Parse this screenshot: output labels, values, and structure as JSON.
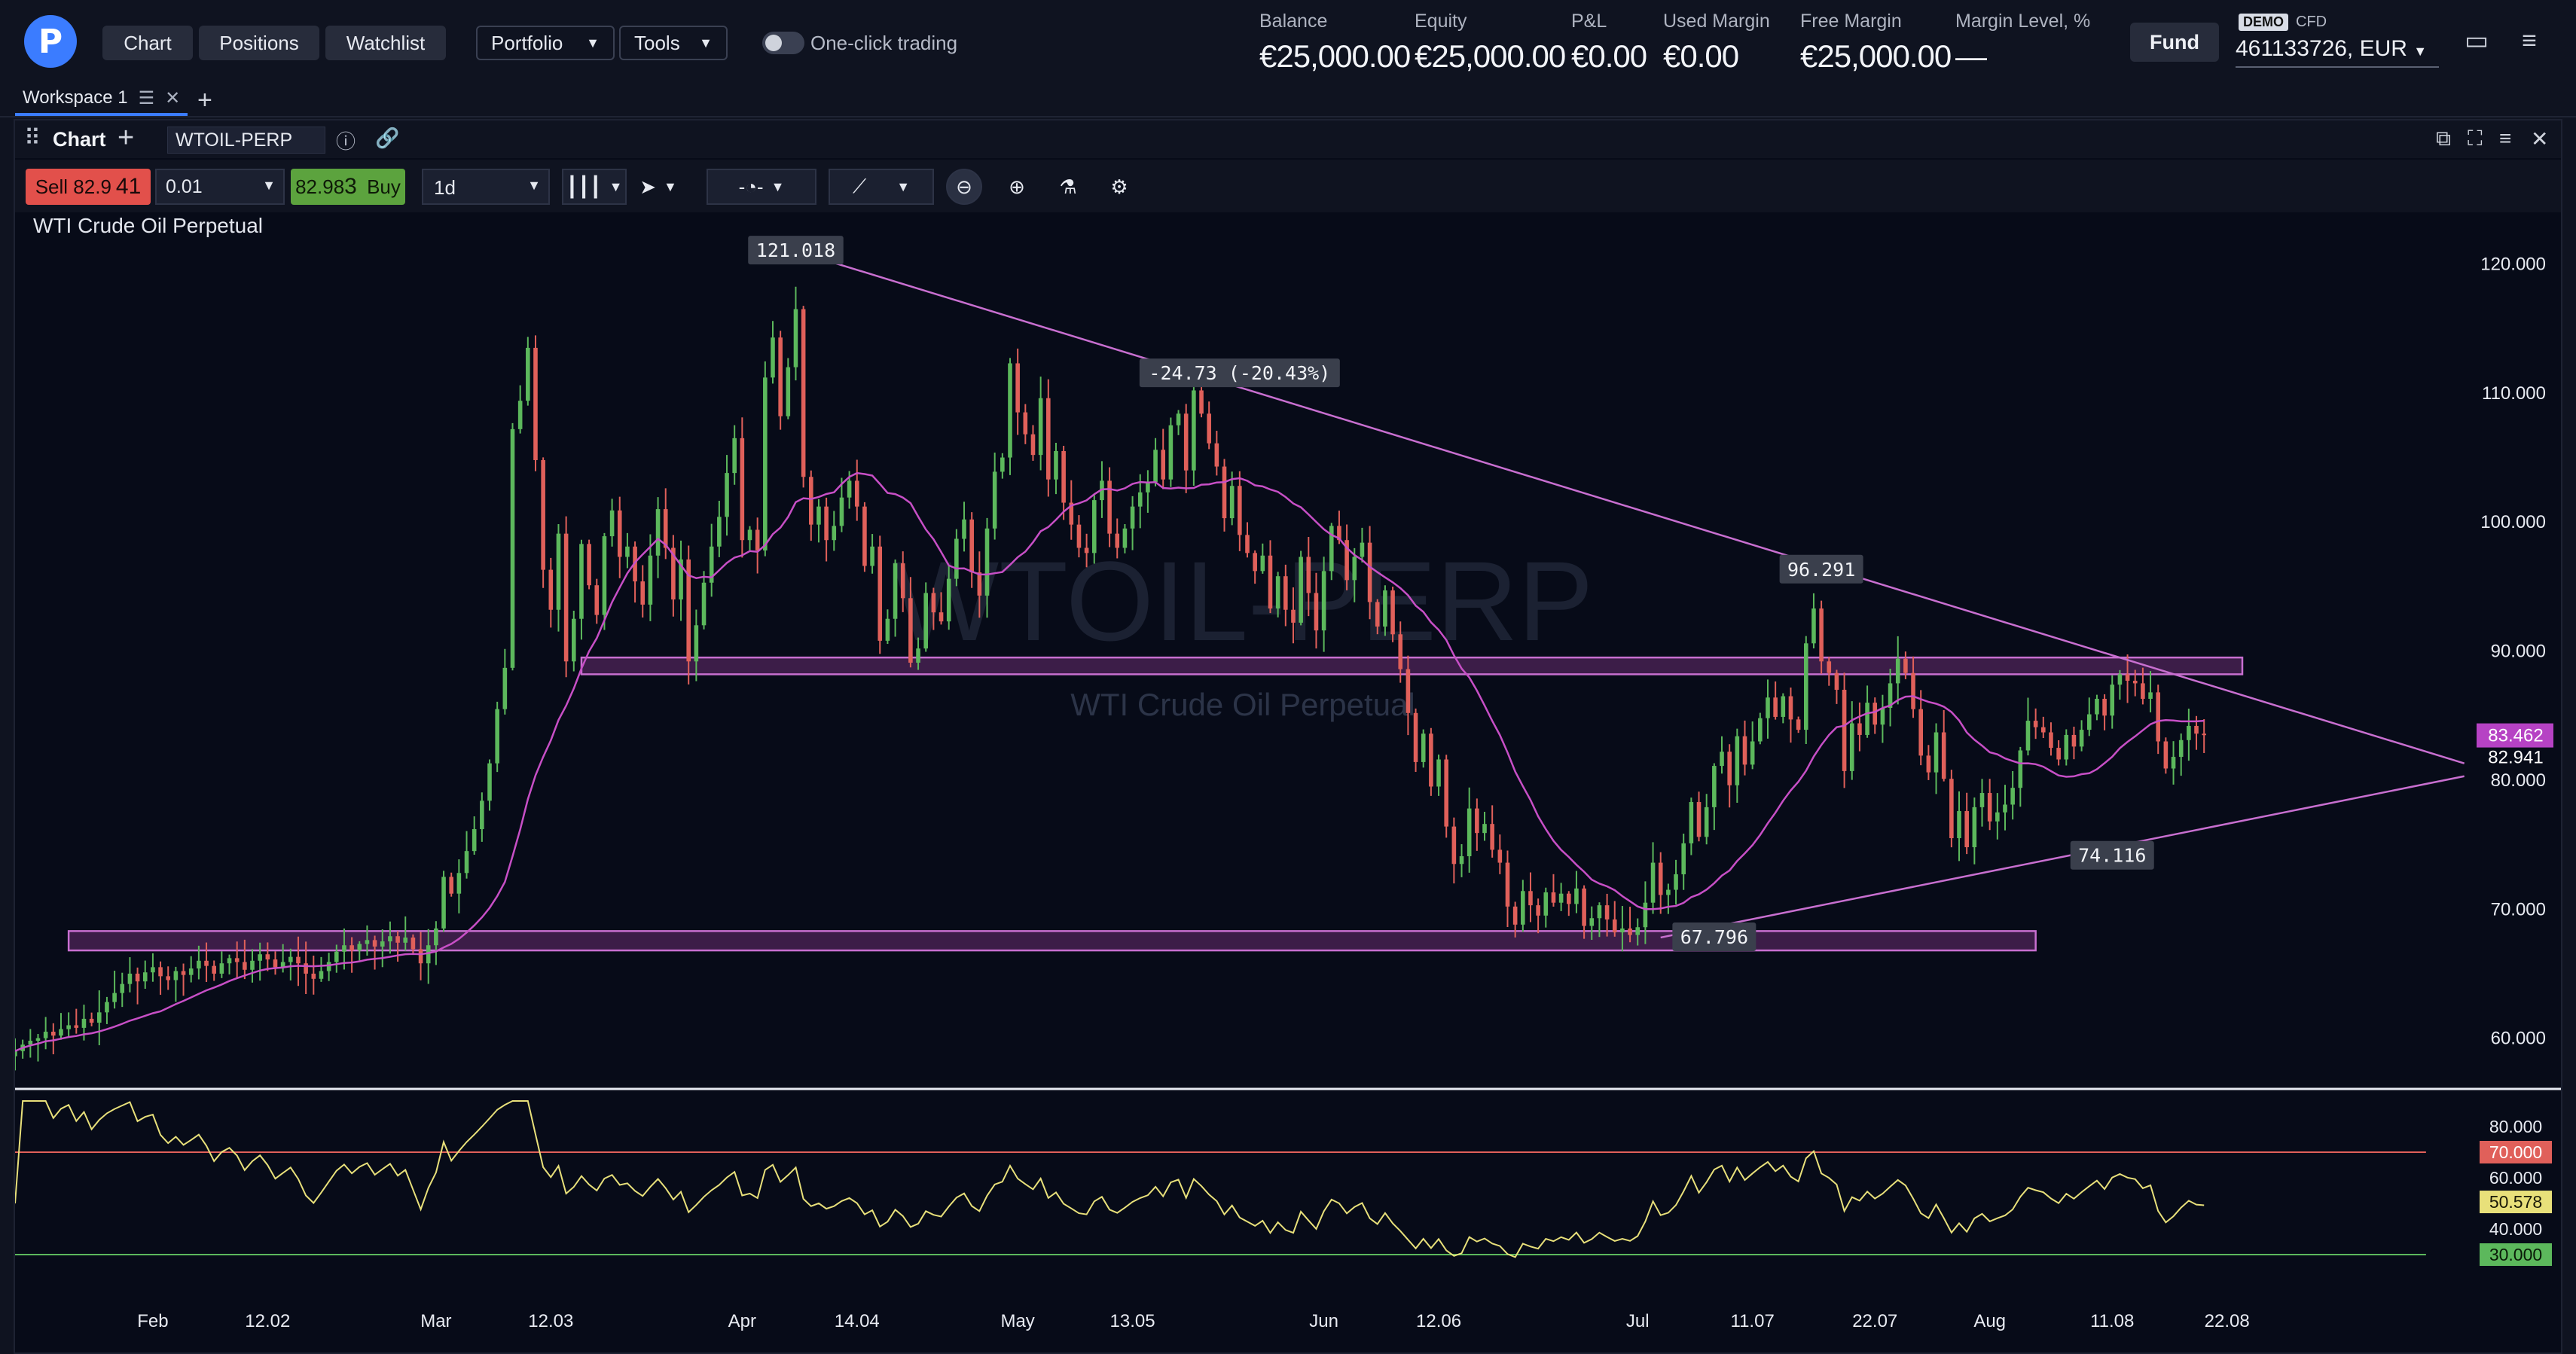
{
  "nav": {
    "tabs": [
      "Chart",
      "Positions",
      "Watchlist"
    ],
    "dropdowns": [
      "Portfolio",
      "Tools"
    ],
    "one_click_label": "One-click trading"
  },
  "account": {
    "fields": [
      {
        "label": "Balance",
        "value": "€25,000.00"
      },
      {
        "label": "Equity",
        "value": "€25,000.00"
      },
      {
        "label": "P&L",
        "value": "€0.00"
      },
      {
        "label": "Used Margin",
        "value": "€0.00"
      },
      {
        "label": "Free Margin",
        "value": "€25,000.00"
      },
      {
        "label": "Margin Level, %",
        "value": "—"
      }
    ],
    "fund_label": "Fund",
    "demo_badge": "DEMO",
    "cfd_label": "CFD",
    "account_number": "461133726, EUR"
  },
  "workspace": {
    "tab_label": "Workspace 1"
  },
  "chart_panel": {
    "title": "Chart",
    "symbol": "WTOIL-PERP",
    "sell_label": "Sell",
    "sell_price_prefix": "82.9",
    "sell_price_big": "41",
    "quantity": "0.01",
    "buy_price_prefix": "82.98",
    "buy_price_big": "3",
    "buy_label": "Buy",
    "timeframe": "1d",
    "instrument_name": "WTI Crude Oil Perpetual",
    "watermark_symbol": "WTOIL-PERP",
    "watermark_name": "WTI Crude Oil Perpetual"
  },
  "colors": {
    "up": "#5cb85c",
    "down": "#e0605a",
    "ma": "#c74fc6",
    "trendline": "#c86fd0",
    "rsi_line": "#e8e07a",
    "rsi_upper": "#e0605a",
    "rsi_lower": "#5cb85c"
  },
  "chart_data": {
    "type": "candlestick",
    "title": "WTI Crude Oil Perpetual",
    "ylim": [
      57,
      124
    ],
    "y_ticks": [
      "60.000",
      "70.000",
      "80.000",
      "90.000",
      "100.000",
      "110.000",
      "120.000"
    ],
    "y_tick_values": [
      60,
      70,
      80,
      90,
      100,
      110,
      120
    ],
    "x_ticks": [
      {
        "label": "Feb",
        "i": 18
      },
      {
        "label": "12.02",
        "i": 33
      },
      {
        "label": "Mar",
        "i": 55
      },
      {
        "label": "12.03",
        "i": 70
      },
      {
        "label": "Apr",
        "i": 95
      },
      {
        "label": "14.04",
        "i": 110
      },
      {
        "label": "May",
        "i": 131
      },
      {
        "label": "13.05",
        "i": 146
      },
      {
        "label": "Jun",
        "i": 171
      },
      {
        "label": "12.06",
        "i": 186
      },
      {
        "label": "Jul",
        "i": 212
      },
      {
        "label": "11.07",
        "i": 227
      },
      {
        "label": "22.07",
        "i": 243
      },
      {
        "label": "Aug",
        "i": 258
      },
      {
        "label": "11.08",
        "i": 274
      },
      {
        "label": "22.08",
        "i": 289
      }
    ],
    "closes": [
      59,
      59.5,
      59.8,
      60,
      60.5,
      60.2,
      60.7,
      61,
      60.8,
      61.5,
      61.2,
      62,
      62.8,
      63.5,
      64.2,
      65,
      64.4,
      65.1,
      65.5,
      64.8,
      64.5,
      65.2,
      64.9,
      65.4,
      66,
      65.6,
      65,
      65.8,
      66.2,
      65.9,
      65.3,
      66,
      66.5,
      66.1,
      65.5,
      65.9,
      66.3,
      65.8,
      65,
      64.6,
      65.2,
      65.9,
      66.7,
      67.2,
      66.8,
      67.3,
      67.6,
      67.1,
      67.5,
      67.9,
      67.4,
      67.8,
      66.9,
      65.8,
      67.2,
      68.5,
      72.5,
      71.2,
      72.8,
      74.5,
      76.2,
      78.4,
      81.3,
      85.5,
      88.7,
      107.2,
      109.4,
      113.5,
      104.8,
      96.3,
      93.2,
      99.1,
      89.2,
      92.5,
      98.3,
      95.1,
      92.8,
      98.9,
      100.9,
      97.3,
      98.1,
      95.4,
      93.6,
      97.4,
      101,
      98,
      94,
      97.1,
      89.2,
      92,
      95.3,
      98.1,
      100.4,
      103.8,
      106.5,
      98.6,
      99.4,
      97.8,
      111.2,
      114.3,
      108.2,
      112,
      116.5,
      103.5,
      99.8,
      101.2,
      98.6,
      99.7,
      101.9,
      103.2,
      101.2,
      96.6,
      98.1,
      90.8,
      92.5,
      96.8,
      94.1,
      89.1,
      90.2,
      94.5,
      93,
      92.3,
      95.6,
      98.7,
      100.2,
      96.1,
      94.3,
      99.5,
      103.9,
      105,
      112.3,
      108.5,
      106.8,
      105.2,
      109.6,
      103.3,
      105.5,
      101.5,
      99.8,
      98,
      97.6,
      101.7,
      103.2,
      99.1,
      98,
      99.5,
      101.2,
      102.3,
      103.1,
      105.6,
      103.3,
      107.5,
      108.4,
      104,
      110.2,
      108.4,
      106.1,
      104.3,
      100.3,
      102.8,
      99,
      97.6,
      96.2,
      97.4,
      93.3,
      95.8,
      93.2,
      92.2,
      97.3,
      94.5,
      91.6,
      96.2,
      99.7,
      98.6,
      95.5,
      97.3,
      98.4,
      93.8,
      91.9,
      94.7,
      91.3,
      88.6,
      85.2,
      81.4,
      83.6,
      79.5,
      81.6,
      76.4,
      73.5,
      74.1,
      77.8,
      75.9,
      76.6,
      74.6,
      73.6,
      70.2,
      68.8,
      71.4,
      70.3,
      69.5,
      71.3,
      70.5,
      71.2,
      70.4,
      71.6,
      68.7,
      69.3,
      70.3,
      69.2,
      68.2,
      68.5,
      68,
      68.6,
      70.5,
      73.6,
      71.1,
      71.5,
      72.7,
      75.1,
      78.3,
      75.6,
      77.9,
      81.1,
      82.2,
      79.6,
      83.4,
      81.2,
      83,
      84.8,
      86.4,
      84.9,
      86.5,
      84.7,
      83.9,
      90.6,
      93.3,
      89.2,
      88.3,
      87,
      80.7,
      84.4,
      83.5,
      86,
      84.3,
      85.6,
      87.5,
      89.4,
      88.3,
      85.5,
      81.9,
      80.6,
      83.7,
      80.1,
      75.5,
      77.6,
      74.8,
      77.9,
      79,
      76.8,
      77.5,
      78.1,
      79.4,
      82.3,
      84.6,
      84.1,
      83.7,
      82.5,
      81.6,
      83.5,
      82.6,
      83.9,
      85.1,
      86.3,
      85,
      87.4,
      88.2,
      87.7,
      87.5,
      86.3,
      86.8,
      83,
      80.9,
      81.8,
      83.1,
      84.2,
      83.6,
      83.5
    ],
    "last_price_label": "83.462",
    "current_price_label": "82.941",
    "annotations": [
      {
        "label": "121.018",
        "i": 102,
        "y": 121.018
      },
      {
        "label": "-24.73 (-20.43%)",
        "i": 160,
        "y": 111.5
      },
      {
        "label": "96.291",
        "i": 236,
        "y": 96.291
      },
      {
        "label": "67.796",
        "i": 222,
        "y": 67.796
      },
      {
        "label": "74.116",
        "i": 274,
        "y": 74.116
      }
    ],
    "zones": [
      {
        "i0": 74,
        "i1": 291,
        "y0": 88.2,
        "y1": 89.5
      },
      {
        "i0": 7,
        "i1": 264,
        "y0": 66.8,
        "y1": 68.3
      }
    ],
    "trendlines": [
      {
        "i0": 102,
        "y0": 121.0,
        "i1": 320,
        "y1": 81.3
      },
      {
        "i0": 215,
        "y0": 67.8,
        "i1": 320,
        "y1": 80.3
      }
    ],
    "rsi": {
      "ylim": [
        20,
        90
      ],
      "upper": 70,
      "lower": 30,
      "ticks": [
        "80.000",
        "70.000",
        "60.000",
        "50.578",
        "40.000",
        "30.000"
      ],
      "tick_values": [
        80,
        70,
        60,
        50.578,
        40,
        30
      ],
      "current_label": "50.578"
    }
  }
}
